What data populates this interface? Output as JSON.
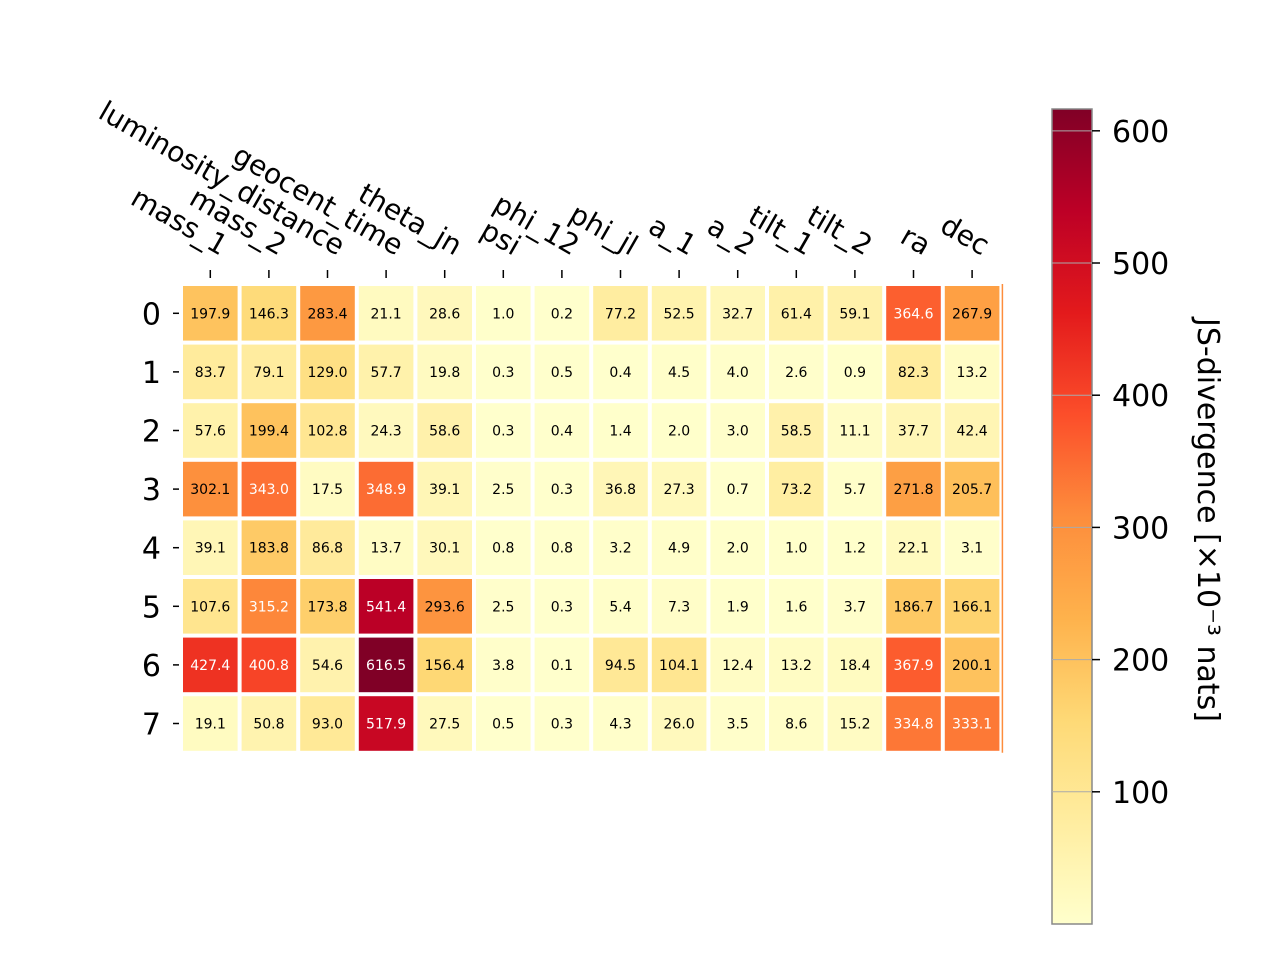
{
  "chart_data": {
    "type": "heatmap",
    "title": "",
    "columns": [
      "mass_1",
      "mass_2",
      "luminosity_distance",
      "geocent_time",
      "theta_jn",
      "psi",
      "phi_12",
      "phi_jl",
      "a_1",
      "a_2",
      "tilt_1",
      "tilt_2",
      "ra",
      "dec"
    ],
    "rows": [
      "0",
      "1",
      "2",
      "3",
      "4",
      "5",
      "6",
      "7"
    ],
    "values": [
      [
        197.9,
        146.3,
        283.4,
        21.1,
        28.6,
        1.0,
        0.2,
        77.2,
        52.5,
        32.7,
        61.4,
        59.1,
        364.6,
        267.9
      ],
      [
        83.7,
        79.1,
        129.0,
        57.7,
        19.8,
        0.3,
        0.5,
        0.4,
        4.5,
        4.0,
        2.6,
        0.9,
        82.3,
        13.2
      ],
      [
        57.6,
        199.4,
        102.8,
        24.3,
        58.6,
        0.3,
        0.4,
        1.4,
        2.0,
        3.0,
        58.5,
        11.1,
        37.7,
        42.4
      ],
      [
        302.1,
        343.0,
        17.5,
        348.9,
        39.1,
        2.5,
        0.3,
        36.8,
        27.3,
        0.7,
        73.2,
        5.7,
        271.8,
        205.7
      ],
      [
        39.1,
        183.8,
        86.8,
        13.7,
        30.1,
        0.8,
        0.8,
        3.2,
        4.9,
        2.0,
        1.0,
        1.2,
        22.1,
        3.1
      ],
      [
        107.6,
        315.2,
        173.8,
        541.4,
        293.6,
        2.5,
        0.3,
        5.4,
        7.3,
        1.9,
        1.6,
        3.7,
        186.7,
        166.1
      ],
      [
        427.4,
        400.8,
        54.6,
        616.5,
        156.4,
        3.8,
        0.1,
        94.5,
        104.1,
        12.4,
        13.2,
        18.4,
        367.9,
        200.1
      ],
      [
        19.1,
        50.8,
        93.0,
        517.9,
        27.5,
        0.5,
        0.3,
        4.3,
        26.0,
        3.5,
        8.6,
        15.2,
        334.8,
        333.1
      ]
    ],
    "colormap": "YlOrRd",
    "color_range": [
      0,
      616.5
    ],
    "colorbar": {
      "label": "JS-divergence [×10⁻³ nats]",
      "ticks": [
        100,
        200,
        300,
        400,
        500,
        600
      ],
      "tick_labels": [
        "100",
        "200",
        "300",
        "400",
        "500",
        "600"
      ]
    },
    "colors": {
      "ramp": [
        "#ffffcc",
        "#ffeda0",
        "#fed976",
        "#feb24c",
        "#fd8d3c",
        "#fc4e2a",
        "#e31a1c",
        "#bd0026",
        "#800026"
      ],
      "light_text": "#ffffff",
      "dark_text": "#000000"
    }
  }
}
